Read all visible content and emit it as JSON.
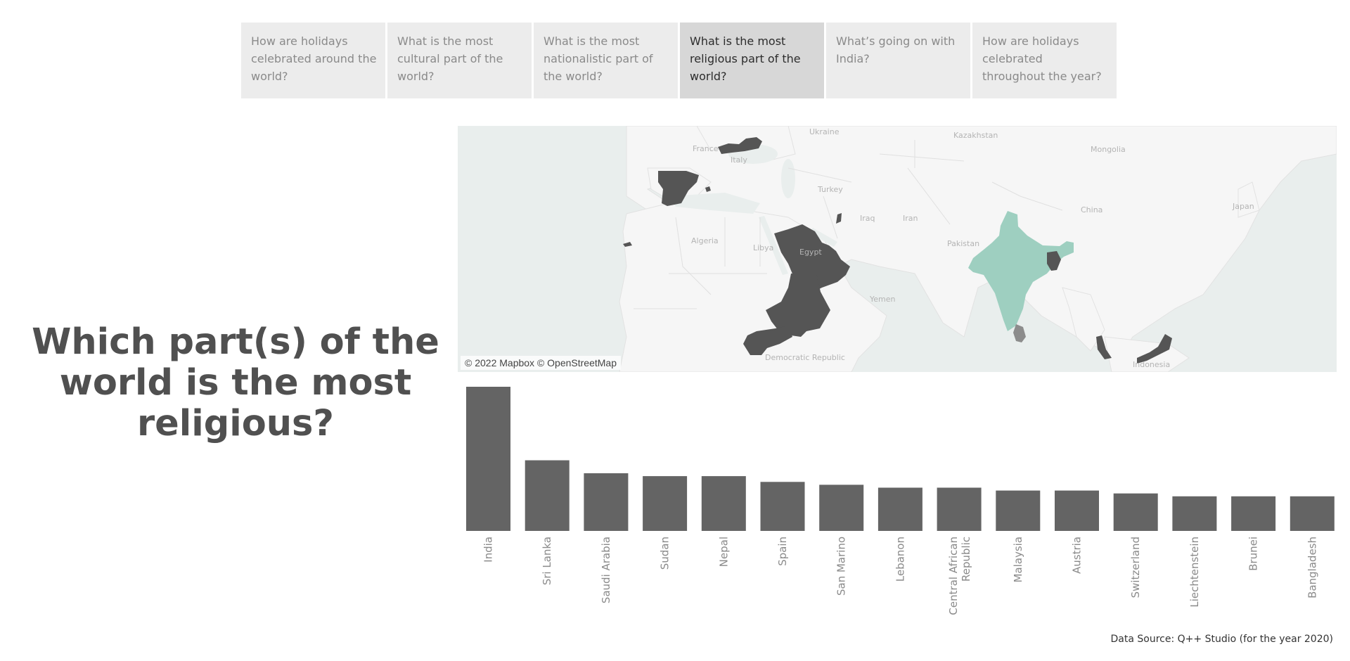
{
  "story": {
    "tabs": [
      {
        "label": "How are holidays celebrated around the world?",
        "active": false
      },
      {
        "label": "What is the most cultural part of the world?",
        "active": false
      },
      {
        "label": "What is the most nationalistic part of the world?",
        "active": false
      },
      {
        "label": "What is the most religious part of the world?",
        "active": true
      },
      {
        "label": "What’s going on with India?",
        "active": false
      },
      {
        "label": "How are holidays celebrated throughout the year?",
        "active": false
      }
    ]
  },
  "dashboard": {
    "question": "Which part(s) of the world is the most religious?",
    "source": "Data Source: Q++ Studio (for the year 2020)"
  },
  "map": {
    "attribution": "© 2022 Mapbox © OpenStreetMap",
    "labels": [
      "France",
      "Italy",
      "Ukraine",
      "Kazakhstan",
      "Mongolia",
      "Turkey",
      "Iraq",
      "Iran",
      "China",
      "Japan",
      "Algeria",
      "Libya",
      "Egypt",
      "Pakistan",
      "Yemen",
      "Democratic Republic",
      "Indonesia"
    ],
    "colors": {
      "highlight": "#9ecfc0",
      "dark": "#555555",
      "medium": "#8c8c8c",
      "land": "#f6f6f6",
      "water": "#e9eeed"
    }
  },
  "chart_data": {
    "type": "bar",
    "categories": [
      "India",
      "Sri Lanka",
      "Saudi Arabia",
      "Sudan",
      "Nepal",
      "Spain",
      "San Marino",
      "Lebanon",
      "Central African Republic",
      "Malaysia",
      "Austria",
      "Switzerland",
      "Liechtenstein",
      "Brunei",
      "Bangladesh"
    ],
    "values": [
      100,
      49,
      40,
      38,
      38,
      34,
      32,
      30,
      30,
      28,
      28,
      26,
      24,
      24,
      24
    ],
    "title": "",
    "xlabel": "",
    "ylabel": "",
    "bar_color": "#646464"
  }
}
